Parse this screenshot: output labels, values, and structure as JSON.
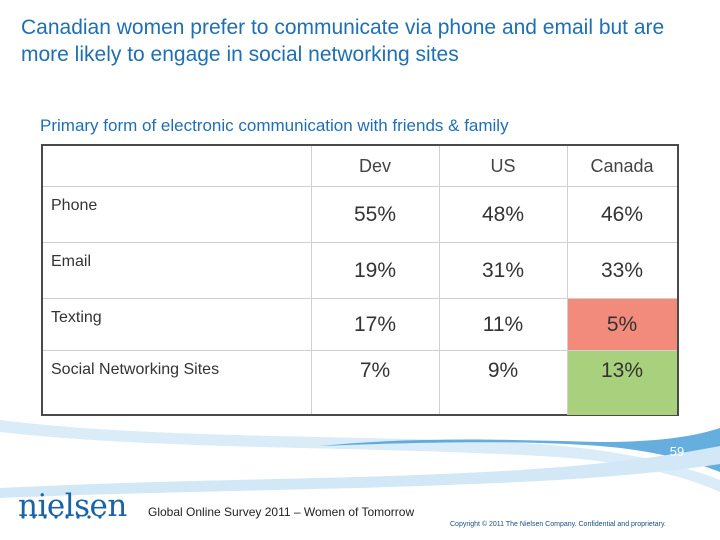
{
  "slide": {
    "title": "Canadian women prefer to communicate via phone and email but are more likely to engage in social networking sites",
    "subtitle": "Primary form of electronic communication with friends & family"
  },
  "table": {
    "columns": [
      "Dev",
      "US",
      "Canada"
    ],
    "rows": [
      {
        "label": "Phone",
        "values": [
          "55%",
          "48%",
          "46%"
        ]
      },
      {
        "label": "Email",
        "values": [
          "19%",
          "31%",
          "33%"
        ]
      },
      {
        "label": "Texting",
        "values": [
          "17%",
          "11%",
          "5%"
        ]
      },
      {
        "label": "Social Networking Sites",
        "values": [
          "7%",
          "9%",
          "13%"
        ]
      }
    ],
    "highlight_colors": {
      "low": "#f28b7c",
      "high": "#a9d17d"
    }
  },
  "footer": {
    "page_number": "59",
    "logo_text": "nielsen",
    "survey_text": "Global Online Survey 2011 – Women of Tomorrow",
    "copyright": "Copyright © 2011 The Nielsen Company. Confidential and proprietary."
  },
  "colors": {
    "title": "#1f6fb5",
    "band": "#4aa0d8"
  }
}
